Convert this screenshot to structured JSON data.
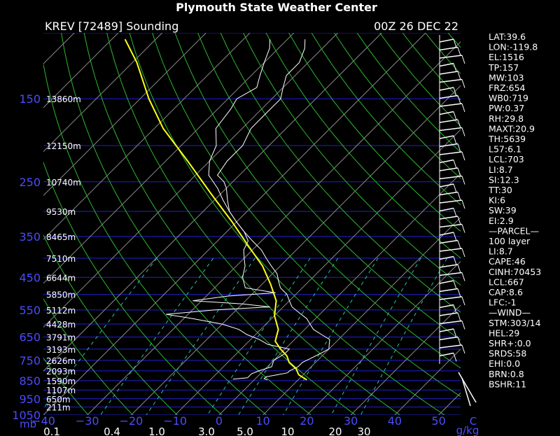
{
  "title": "Plymouth State Weather Center",
  "header_left": "KREV [72489] Sounding",
  "header_right": "00Z 26 DEC 22",
  "chart_data": {
    "type": "skew-t",
    "pressure_axis": {
      "unit_label": "mb",
      "ticks": [
        "150",
        "250",
        "350",
        "450",
        "550",
        "650",
        "750",
        "850",
        "950",
        "1050"
      ],
      "pmin": 100,
      "pmax": 1050
    },
    "heights": [
      {
        "p": 150,
        "label": "13860m"
      },
      {
        "p": 200,
        "label": "12150m"
      },
      {
        "p": 250,
        "label": "10740m"
      },
      {
        "p": 300,
        "label": "9530m"
      },
      {
        "p": 350,
        "label": "8465m"
      },
      {
        "p": 400,
        "label": "7510m"
      },
      {
        "p": 450,
        "label": "6644m"
      },
      {
        "p": 500,
        "label": "5850m"
      },
      {
        "p": 550,
        "label": "5112m"
      },
      {
        "p": 600,
        "label": "4428m"
      },
      {
        "p": 650,
        "label": "3791m"
      },
      {
        "p": 700,
        "label": "3193m"
      },
      {
        "p": 750,
        "label": "2626m"
      },
      {
        "p": 800,
        "label": "2093m"
      },
      {
        "p": 850,
        "label": "1590m"
      },
      {
        "p": 900,
        "label": "1107m"
      },
      {
        "p": 950,
        "label": "650m"
      },
      {
        "p": 1000,
        "label": "211m"
      }
    ],
    "temperature_axis": {
      "unit_label": "C",
      "ticks": [
        "−40",
        "−30",
        "−20",
        "−10",
        "0",
        "10",
        "20",
        "30",
        "40",
        "50"
      ],
      "tmin": -40,
      "tmax": 55
    },
    "mixing_ratio_axis": {
      "unit_label": "g/kg",
      "ticks": [
        "0.1",
        "0.4",
        "1.0",
        "3.0",
        "5.0",
        "10",
        "20",
        "30"
      ],
      "values": [
        0.1,
        0.4,
        1.0,
        3.0,
        5.0,
        10,
        20,
        30
      ]
    },
    "temperature_profile": [
      {
        "p": 846,
        "t": 3
      },
      {
        "p": 840,
        "t": 2
      },
      {
        "p": 830,
        "t": 2
      },
      {
        "p": 820,
        "t": 4
      },
      {
        "p": 810,
        "t": 6
      },
      {
        "p": 800,
        "t": 6
      },
      {
        "p": 780,
        "t": 7
      },
      {
        "p": 760,
        "t": 7
      },
      {
        "p": 740,
        "t": 8
      },
      {
        "p": 720,
        "t": 9
      },
      {
        "p": 700,
        "t": 10
      },
      {
        "p": 680,
        "t": 9
      },
      {
        "p": 660,
        "t": 8
      },
      {
        "p": 640,
        "t": 5
      },
      {
        "p": 620,
        "t": 2
      },
      {
        "p": 600,
        "t": 0
      },
      {
        "p": 580,
        "t": -2
      },
      {
        "p": 560,
        "t": -5
      },
      {
        "p": 540,
        "t": -8
      },
      {
        "p": 520,
        "t": -10
      },
      {
        "p": 500,
        "t": -12
      },
      {
        "p": 480,
        "t": -15
      },
      {
        "p": 460,
        "t": -17
      },
      {
        "p": 440,
        "t": -19
      },
      {
        "p": 420,
        "t": -22
      },
      {
        "p": 400,
        "t": -25
      },
      {
        "p": 380,
        "t": -28
      },
      {
        "p": 360,
        "t": -32
      },
      {
        "p": 340,
        "t": -36
      },
      {
        "p": 320,
        "t": -40
      },
      {
        "p": 300,
        "t": -44
      },
      {
        "p": 280,
        "t": -47
      },
      {
        "p": 260,
        "t": -50
      },
      {
        "p": 250,
        "t": -52
      },
      {
        "p": 240,
        "t": -55
      },
      {
        "p": 220,
        "t": -56
      },
      {
        "p": 200,
        "t": -56
      },
      {
        "p": 180,
        "t": -58
      },
      {
        "p": 160,
        "t": -58
      },
      {
        "p": 150,
        "t": -58
      },
      {
        "p": 140,
        "t": -60
      },
      {
        "p": 130,
        "t": -62
      },
      {
        "p": 120,
        "t": -62
      },
      {
        "p": 110,
        "t": -64
      },
      {
        "p": 104,
        "t": -66
      }
    ],
    "dewpoint_profile": [
      {
        "p": 842,
        "t": -5
      },
      {
        "p": 835,
        "t": -2
      },
      {
        "p": 815,
        "t": -2
      },
      {
        "p": 800,
        "t": -1
      },
      {
        "p": 780,
        "t": 1
      },
      {
        "p": 750,
        "t": 0
      },
      {
        "p": 720,
        "t": 1
      },
      {
        "p": 700,
        "t": 1
      },
      {
        "p": 680,
        "t": -5
      },
      {
        "p": 660,
        "t": -8
      },
      {
        "p": 640,
        "t": -12
      },
      {
        "p": 620,
        "t": -15
      },
      {
        "p": 600,
        "t": -20
      },
      {
        "p": 580,
        "t": -28
      },
      {
        "p": 565,
        "t": -35
      },
      {
        "p": 550,
        "t": -25
      },
      {
        "p": 540,
        "t": -13
      },
      {
        "p": 530,
        "t": -20
      },
      {
        "p": 520,
        "t": -32
      },
      {
        "p": 505,
        "t": -25
      },
      {
        "p": 495,
        "t": -15
      },
      {
        "p": 480,
        "t": -23
      },
      {
        "p": 450,
        "t": -26
      },
      {
        "p": 420,
        "t": -28
      },
      {
        "p": 400,
        "t": -30
      },
      {
        "p": 380,
        "t": -32
      },
      {
        "p": 360,
        "t": -33
      },
      {
        "p": 340,
        "t": -36
      },
      {
        "p": 320,
        "t": -40
      },
      {
        "p": 300,
        "t": -44
      },
      {
        "p": 280,
        "t": -48
      },
      {
        "p": 260,
        "t": -52
      },
      {
        "p": 240,
        "t": -57
      },
      {
        "p": 220,
        "t": -60
      },
      {
        "p": 200,
        "t": -62
      },
      {
        "p": 180,
        "t": -66
      },
      {
        "p": 160,
        "t": -67
      },
      {
        "p": 150,
        "t": -68
      },
      {
        "p": 140,
        "t": -66
      },
      {
        "p": 130,
        "t": -68
      },
      {
        "p": 120,
        "t": -70
      },
      {
        "p": 110,
        "t": -72
      },
      {
        "p": 104,
        "t": -74
      }
    ],
    "parcel_profile": [
      {
        "p": 846,
        "t": 12
      },
      {
        "p": 820,
        "t": 9
      },
      {
        "p": 790,
        "t": 7
      },
      {
        "p": 760,
        "t": 4
      },
      {
        "p": 730,
        "t": 2
      },
      {
        "p": 700,
        "t": -1
      },
      {
        "p": 667,
        "t": -4
      },
      {
        "p": 620,
        "t": -6
      },
      {
        "p": 570,
        "t": -10
      },
      {
        "p": 520,
        "t": -13
      },
      {
        "p": 470,
        "t": -18
      },
      {
        "p": 420,
        "t": -24
      },
      {
        "p": 370,
        "t": -32
      },
      {
        "p": 320,
        "t": -41
      },
      {
        "p": 270,
        "t": -52
      },
      {
        "p": 220,
        "t": -65
      },
      {
        "p": 180,
        "t": -78
      },
      {
        "p": 150,
        "t": -88
      },
      {
        "p": 120,
        "t": -99
      },
      {
        "p": 104,
        "t": -107
      }
    ]
  },
  "stats": [
    "LAT:39.6",
    "LON:-119.8",
    "EL:1516",
    "TP:157",
    "MW:103",
    "FRZ:654",
    "WB0:719",
    "PW:0.37",
    "RH:29.8",
    "MAXT:20.9",
    "TH:5639",
    "L57:6.1",
    "LCL:703",
    "LI:8.7",
    "SI:12.3",
    "TT:30",
    "KI:6",
    "SW:39",
    "EI:2.9",
    "—PARCEL—",
    "100 layer",
    "LI:8.7",
    "CAPE:46",
    "CINH:70453",
    "LCL:667",
    "CAP:8.6",
    "LFC:-1",
    "—WIND—",
    "STM:303/14",
    "HEL:29",
    "SHR+:0.0",
    "SRDS:58",
    "EHI:0.0",
    "BRN:0.8",
    "BSHR:11"
  ],
  "colors": {
    "isobar": "#1f1fd8",
    "isotherm": "#8a8a8a",
    "dry_adiabat": "#2db82d",
    "mixing_ratio": "#2fbfa5",
    "temperature": "#ffffff",
    "dewpoint": "#ffffff",
    "parcel": "#ffff1a"
  }
}
